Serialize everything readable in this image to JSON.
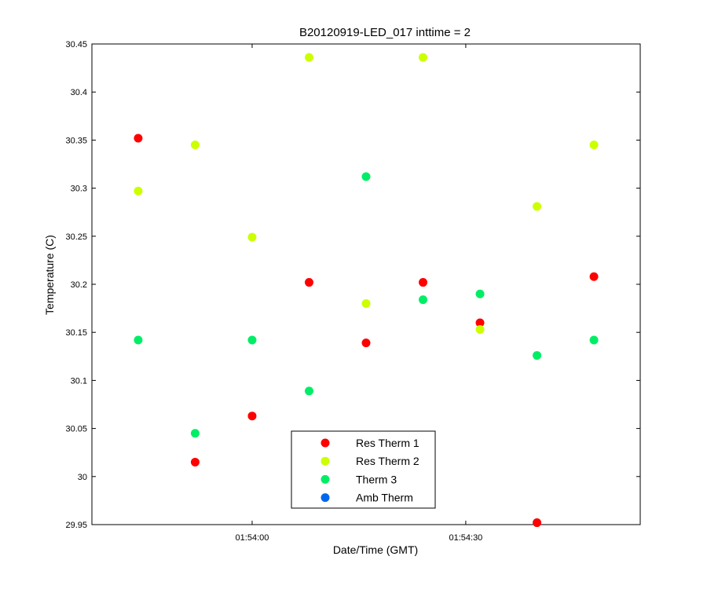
{
  "chart_data": {
    "type": "scatter",
    "title": "B20120919-LED_017 inttime = 2",
    "xlabel": "Date/Time (GMT)",
    "ylabel": "Temperature (C)",
    "x_unit": "seconds",
    "xlim": [
      -22.5,
      54.5
    ],
    "ylim": [
      29.95,
      30.45
    ],
    "x_ticks": [
      {
        "value": 0,
        "label": "01:54:00"
      },
      {
        "value": 30,
        "label": "01:54:30"
      }
    ],
    "y_ticks": [
      {
        "value": 29.95,
        "label": "29.95"
      },
      {
        "value": 30.0,
        "label": "30"
      },
      {
        "value": 30.05,
        "label": "30.05"
      },
      {
        "value": 30.1,
        "label": "30.1"
      },
      {
        "value": 30.15,
        "label": "30.15"
      },
      {
        "value": 30.2,
        "label": "30.2"
      },
      {
        "value": 30.25,
        "label": "30.25"
      },
      {
        "value": 30.3,
        "label": "30.3"
      },
      {
        "value": 30.35,
        "label": "30.35"
      },
      {
        "value": 30.4,
        "label": "30.4"
      },
      {
        "value": 30.45,
        "label": "30.45"
      }
    ],
    "grid": false,
    "legend_position": "bottom-center",
    "series": [
      {
        "name": "Res Therm 1",
        "color": "#ff0000",
        "points": [
          [
            -16,
            30.352
          ],
          [
            -8,
            30.015
          ],
          [
            0,
            30.063
          ],
          [
            8,
            30.202
          ],
          [
            16,
            30.139
          ],
          [
            24,
            30.202
          ],
          [
            32,
            30.16
          ],
          [
            40,
            29.952
          ],
          [
            48,
            30.208
          ]
        ]
      },
      {
        "name": "Res Therm 2",
        "color": "#ccff00",
        "points": [
          [
            -16,
            30.297
          ],
          [
            -8,
            30.345
          ],
          [
            0,
            30.249
          ],
          [
            8,
            30.436
          ],
          [
            16,
            30.18
          ],
          [
            24,
            30.436
          ],
          [
            32,
            30.153
          ],
          [
            40,
            30.281
          ],
          [
            48,
            30.345
          ]
        ]
      },
      {
        "name": "Therm 3",
        "color": "#00ee66",
        "points": [
          [
            -16,
            30.142
          ],
          [
            -8,
            30.045
          ],
          [
            0,
            30.142
          ],
          [
            8,
            30.089
          ],
          [
            16,
            30.312
          ],
          [
            24,
            30.184
          ],
          [
            32,
            30.19
          ],
          [
            40,
            30.126
          ],
          [
            48,
            30.142
          ]
        ]
      },
      {
        "name": "Amb Therm",
        "color": "#0066ee",
        "points": []
      }
    ]
  }
}
